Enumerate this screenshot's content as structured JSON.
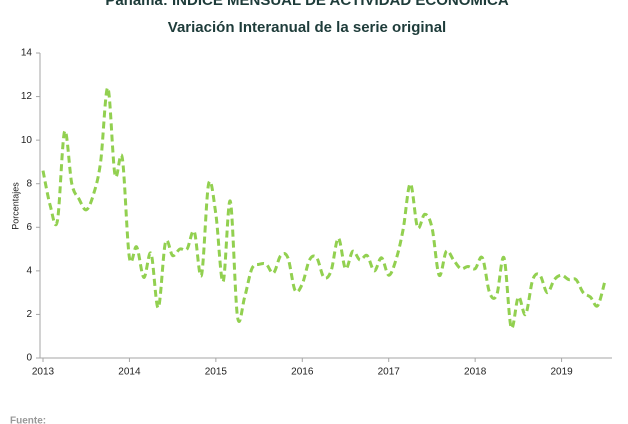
{
  "chart_data": {
    "type": "line",
    "title": "Panamá: ÍNDICE MENSUAL DE ACTIVIDAD ECONÓMICA",
    "subtitle": "Variación Interanual de la serie original",
    "y_label": "Porcentajes",
    "footer": "Fuente:",
    "categories": [
      "2013",
      null,
      null,
      null,
      null,
      null,
      null,
      null,
      null,
      null,
      null,
      null,
      "2014",
      null,
      null,
      null,
      null,
      null,
      null,
      null,
      null,
      null,
      null,
      null,
      "2015",
      null,
      null,
      null,
      null,
      null,
      null,
      null,
      null,
      null,
      null,
      null,
      "2016",
      null,
      null,
      null,
      null,
      null,
      null,
      null,
      null,
      null,
      null,
      null,
      "2017",
      null,
      null,
      null,
      null,
      null,
      null,
      null,
      null,
      null,
      null,
      null,
      "2018",
      null,
      null,
      null,
      null,
      null,
      null,
      null,
      null,
      null,
      null,
      null,
      "2019",
      null,
      null,
      null,
      null,
      null,
      null
    ],
    "series": [
      {
        "name": "Variación interanual",
        "color": "#92d050",
        "values": [
          8.6,
          7.0,
          6.3,
          10.4,
          8.0,
          7.3,
          6.8,
          7.5,
          9.0,
          12.4,
          8.4,
          9.2,
          4.6,
          5.1,
          3.7,
          4.8,
          2.3,
          5.3,
          4.7,
          5.0,
          5.0,
          5.8,
          3.8,
          8.0,
          6.6,
          3.5,
          7.2,
          1.9,
          2.8,
          4.1,
          4.3,
          4.3,
          3.9,
          4.7,
          4.6,
          3.1,
          3.4,
          4.5,
          4.6,
          3.7,
          4.0,
          5.5,
          4.1,
          4.9,
          4.5,
          4.7,
          4.0,
          4.6,
          3.8,
          4.5,
          5.9,
          8.0,
          6.0,
          6.6,
          6.0,
          3.8,
          4.9,
          4.5,
          4.1,
          4.2,
          4.1,
          4.6,
          3.0,
          2.9,
          4.6,
          1.4,
          2.8,
          2.0,
          3.6,
          3.8,
          3.0,
          3.6,
          3.8,
          3.6,
          3.6,
          3.0,
          2.8,
          2.4,
          3.5
        ]
      }
    ],
    "ylim": [
      0,
      14
    ],
    "yticks": [
      0,
      2,
      4,
      6,
      8,
      10,
      12,
      14
    ],
    "grid": false
  }
}
